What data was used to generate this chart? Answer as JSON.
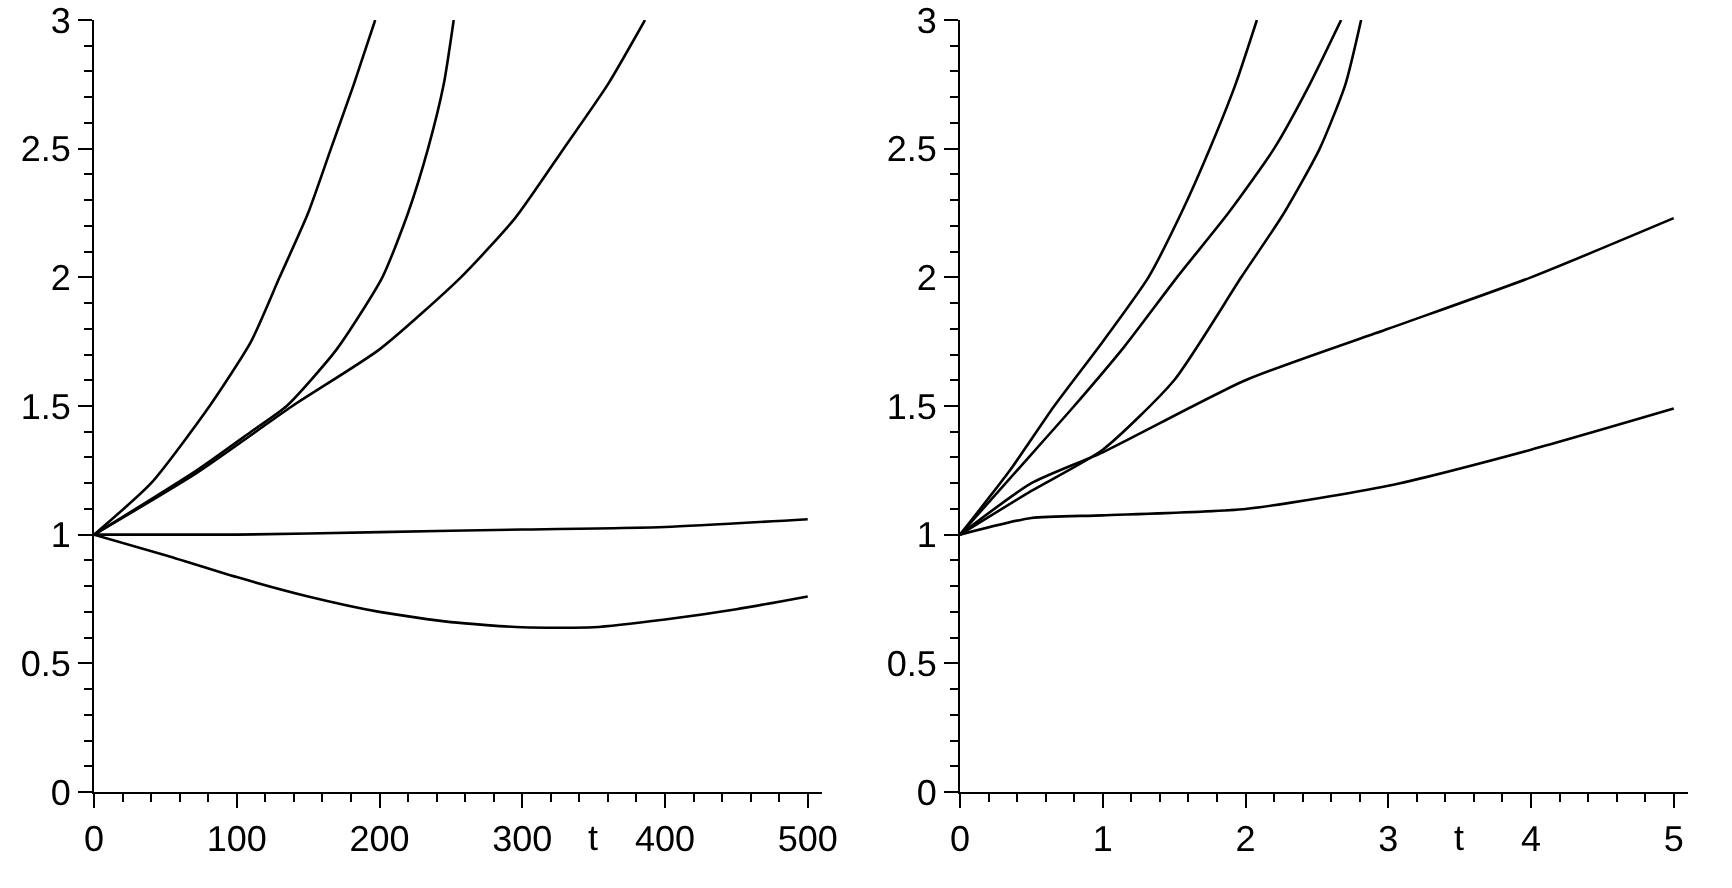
{
  "chart_data": [
    {
      "type": "line",
      "xlabel": "t",
      "xlim": [
        0,
        510
      ],
      "ylim": [
        0,
        3
      ],
      "xticks": [
        0,
        100,
        200,
        300,
        400,
        500
      ],
      "yticks": [
        0,
        0.5,
        1,
        1.5,
        2,
        2.5,
        3
      ],
      "series": [
        {
          "color": "#000000",
          "x": [
            0,
            40,
            81,
            110,
            130,
            150,
            166,
            182,
            197
          ],
          "values": [
            1,
            1.2,
            1.5,
            1.75,
            2,
            2.25,
            2.5,
            2.75,
            3
          ]
        },
        {
          "color": "#000000",
          "x": [
            0,
            72,
            110,
            135,
            170,
            202,
            220,
            234,
            245,
            252
          ],
          "values": [
            1,
            1.25,
            1.4,
            1.5,
            1.72,
            2,
            2.25,
            2.5,
            2.75,
            3
          ]
        },
        {
          "color": "#000000",
          "x": [
            0,
            72,
            139,
            200,
            257,
            295,
            329,
            360,
            386
          ],
          "values": [
            1,
            1.24,
            1.5,
            1.72,
            2,
            2.23,
            2.5,
            2.75,
            3
          ]
        },
        {
          "color": "#000000",
          "x": [
            0,
            100,
            200,
            300,
            400,
            500
          ],
          "values": [
            1,
            1,
            1.01,
            1.02,
            1.03,
            1.06
          ]
        },
        {
          "color": "#000000",
          "x": [
            0,
            50,
            100,
            150,
            200,
            250,
            300,
            350,
            400,
            450,
            500
          ],
          "values": [
            1,
            0.92,
            0.835,
            0.76,
            0.7,
            0.66,
            0.64,
            0.64,
            0.67,
            0.71,
            0.76
          ]
        }
      ]
    },
    {
      "type": "line",
      "xlabel": "t",
      "xlim": [
        0,
        5.1
      ],
      "ylim": [
        0,
        3
      ],
      "xticks": [
        0,
        1,
        2,
        3,
        4,
        5
      ],
      "yticks": [
        0,
        0.5,
        1,
        1.5,
        2,
        2.5,
        3
      ],
      "series": [
        {
          "color": "#000000",
          "x": [
            0,
            0.35,
            0.66,
            1,
            1.32,
            1.55,
            1.75,
            1.93,
            2.08
          ],
          "values": [
            1,
            1.25,
            1.5,
            1.75,
            2,
            2.25,
            2.5,
            2.75,
            3
          ]
        },
        {
          "color": "#000000",
          "x": [
            0,
            0.4,
            0.8,
            1.15,
            1.52,
            1.88,
            2.2,
            2.45,
            2.67
          ],
          "values": [
            1,
            1.25,
            1.5,
            1.73,
            2,
            2.25,
            2.5,
            2.75,
            3
          ]
        },
        {
          "color": "#000000",
          "x": [
            0,
            0.5,
            1,
            1.5,
            1.97,
            2.27,
            2.52,
            2.7,
            2.81
          ],
          "values": [
            1,
            1.17,
            1.33,
            1.6,
            2,
            2.25,
            2.5,
            2.75,
            3
          ]
        },
        {
          "color": "#000000",
          "x": [
            0,
            0.5,
            1,
            2,
            3,
            4,
            5
          ],
          "values": [
            1,
            1.2,
            1.32,
            1.6,
            1.8,
            2,
            2.23
          ]
        },
        {
          "color": "#000000",
          "x": [
            0,
            0.5,
            1,
            2,
            3,
            4,
            5
          ],
          "values": [
            1,
            1.065,
            1.075,
            1.1,
            1.19,
            1.33,
            1.49
          ]
        }
      ]
    }
  ]
}
